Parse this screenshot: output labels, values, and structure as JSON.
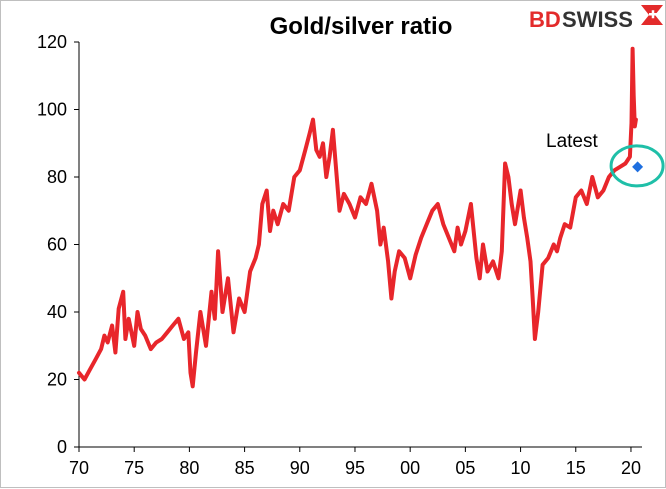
{
  "brand": {
    "part1": "BD",
    "part2": "SWISS"
  },
  "colors": {
    "line": "#e8262b",
    "marker": "#1e6fe0",
    "circle": "#1fbfa8",
    "axis": "#000000",
    "logo_red": "#e32b2b"
  },
  "chart_data": {
    "type": "line",
    "title": "Gold/silver ratio",
    "xlabel": "",
    "ylabel": "",
    "xlim": [
      1970,
      2021
    ],
    "ylim": [
      0,
      120
    ],
    "grid": false,
    "legend": "none",
    "x_ticks": [
      1970,
      1975,
      1980,
      1985,
      1990,
      1995,
      2000,
      2005,
      2010,
      2015,
      2020
    ],
    "x_tick_labels": [
      "70",
      "75",
      "80",
      "85",
      "90",
      "95",
      "00",
      "05",
      "10",
      "15",
      "20"
    ],
    "y_ticks": [
      0,
      20,
      40,
      60,
      80,
      100,
      120
    ],
    "y_tick_labels": [
      "0",
      "20",
      "40",
      "60",
      "80",
      "100",
      "120"
    ],
    "series": [
      {
        "x": [
          1970.0,
          1970.5,
          1971.0,
          1971.5,
          1972.0,
          1972.3,
          1972.6,
          1973.0,
          1973.3,
          1973.6,
          1974.0,
          1974.2,
          1974.5,
          1975.0,
          1975.3,
          1975.6,
          1976.0,
          1976.5,
          1977.0,
          1977.5,
          1978.0,
          1978.5,
          1979.0,
          1979.5,
          1979.9,
          1980.1,
          1980.3,
          1980.6,
          1981.0,
          1981.5,
          1982.0,
          1982.3,
          1982.6,
          1983.0,
          1983.5,
          1984.0,
          1984.5,
          1985.0,
          1985.5,
          1986.0,
          1986.3,
          1986.6,
          1987.0,
          1987.3,
          1987.6,
          1988.0,
          1988.5,
          1989.0,
          1989.5,
          1990.0,
          1990.5,
          1990.9,
          1991.2,
          1991.5,
          1991.8,
          1992.1,
          1992.4,
          1992.7,
          1993.0,
          1993.3,
          1993.6,
          1994.0,
          1994.5,
          1995.0,
          1995.5,
          1996.0,
          1996.5,
          1997.0,
          1997.3,
          1997.6,
          1998.0,
          1998.3,
          1998.6,
          1999.0,
          1999.5,
          2000.0,
          2000.5,
          2001.0,
          2001.5,
          2002.0,
          2002.5,
          2003.0,
          2003.5,
          2004.0,
          2004.3,
          2004.6,
          2005.0,
          2005.5,
          2006.0,
          2006.3,
          2006.6,
          2007.0,
          2007.5,
          2008.0,
          2008.3,
          2008.6,
          2008.9,
          2009.2,
          2009.5,
          2010.0,
          2010.3,
          2010.6,
          2010.9,
          2011.1,
          2011.3,
          2011.6,
          2012.0,
          2012.5,
          2013.0,
          2013.3,
          2013.6,
          2014.0,
          2014.5,
          2015.0,
          2015.5,
          2016.0,
          2016.5,
          2017.0,
          2017.5,
          2018.0,
          2018.5,
          2019.0,
          2019.5,
          2019.9,
          2020.05,
          2020.15,
          2020.25,
          2020.35,
          2020.45
        ],
        "y": [
          22,
          20,
          23,
          26,
          29,
          33,
          31,
          36,
          28,
          41,
          46,
          32,
          38,
          30,
          40,
          35,
          33,
          29,
          31,
          32,
          34,
          36,
          38,
          32,
          34,
          22,
          18,
          28,
          40,
          30,
          46,
          38,
          58,
          40,
          50,
          34,
          44,
          40,
          52,
          56,
          60,
          72,
          76,
          64,
          70,
          66,
          72,
          70,
          80,
          82,
          88,
          93,
          97,
          88,
          86,
          90,
          80,
          86,
          94,
          82,
          70,
          75,
          72,
          68,
          74,
          72,
          78,
          70,
          60,
          65,
          55,
          44,
          52,
          58,
          56,
          50,
          57,
          62,
          66,
          70,
          72,
          66,
          62,
          58,
          65,
          60,
          64,
          72,
          56,
          50,
          60,
          52,
          55,
          50,
          58,
          84,
          80,
          72,
          66,
          76,
          68,
          62,
          55,
          44,
          32,
          40,
          54,
          56,
          60,
          58,
          62,
          66,
          65,
          74,
          76,
          72,
          80,
          74,
          76,
          80,
          82,
          83,
          84,
          86,
          96,
          118,
          104,
          95,
          97
        ]
      }
    ],
    "markers": [
      {
        "x": 2020.6,
        "y": 83
      }
    ],
    "annotations": [
      {
        "text": "Latest"
      }
    ]
  }
}
